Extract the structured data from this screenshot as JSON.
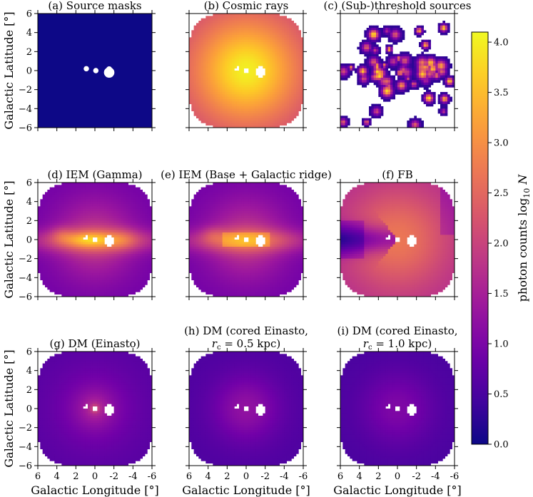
{
  "chart_data": {
    "type": "heatmap",
    "panels": [
      {
        "id": "a",
        "title": [
          "(a) Source masks"
        ],
        "kind": "masks"
      },
      {
        "id": "b",
        "title": [
          "(b) Cosmic rays"
        ],
        "kind": "cosmic_rays"
      },
      {
        "id": "c",
        "title": [
          "(c) (Sub-)threshold sources"
        ],
        "kind": "sources"
      },
      {
        "id": "d",
        "title": [
          "(d) IEM (Gamma)"
        ],
        "kind": "iem_gamma"
      },
      {
        "id": "e",
        "title": [
          "(e) IEM (Base + Galactic ridge)"
        ],
        "kind": "iem_base"
      },
      {
        "id": "f",
        "title": [
          "(f) FB"
        ],
        "kind": "fb"
      },
      {
        "id": "g",
        "title": [
          "(g) DM (Einasto)"
        ],
        "kind": "dm_einasto"
      },
      {
        "id": "h",
        "title": [
          "(h) DM (cored Einasto,",
          "r_c = 0.5 kpc)"
        ],
        "kind": "dm_cored_05"
      },
      {
        "id": "i",
        "title": [
          "(i) DM (cored Einasto,",
          "r_c = 1.0 kpc)"
        ],
        "kind": "dm_cored_10"
      }
    ],
    "xlabel": "Galactic Longitude [°]",
    "ylabel": "Galactic Latitude [°]",
    "xlim": [
      6,
      -6
    ],
    "ylim": [
      -6,
      6
    ],
    "xticks": [
      6,
      4,
      2,
      0,
      -2,
      -4,
      -6
    ],
    "xtick_labels": [
      "6",
      "4",
      "2",
      "0",
      "-2",
      "-4",
      "-6"
    ],
    "yticks": [
      -6,
      -4,
      -2,
      0,
      2,
      4,
      6
    ],
    "ytick_labels": [
      "−6",
      "−4",
      "−2",
      "0",
      "2",
      "4",
      "6"
    ],
    "colorbar": {
      "label": "photon counts log10 N",
      "label_text": "photon counts",
      "label_math": "log10 N",
      "range": [
        0.0,
        4.1
      ],
      "ticks": [
        0.0,
        0.5,
        1.0,
        1.5,
        2.0,
        2.5,
        3.0,
        3.5,
        4.0
      ],
      "tick_labels": [
        "0.0",
        "0.5",
        "1.0",
        "1.5",
        "2.0",
        "2.5",
        "3.0",
        "3.5",
        "4.0"
      ],
      "colormap": "plasma"
    },
    "colors": {
      "background": "#0d0887",
      "masked": "#ffffff",
      "cmap_stops": [
        "#0d0887",
        "#46039f",
        "#7201a8",
        "#9c179e",
        "#bd3786",
        "#d8576b",
        "#ed7953",
        "#fb9f3a",
        "#fdca26",
        "#f0f921"
      ]
    }
  }
}
